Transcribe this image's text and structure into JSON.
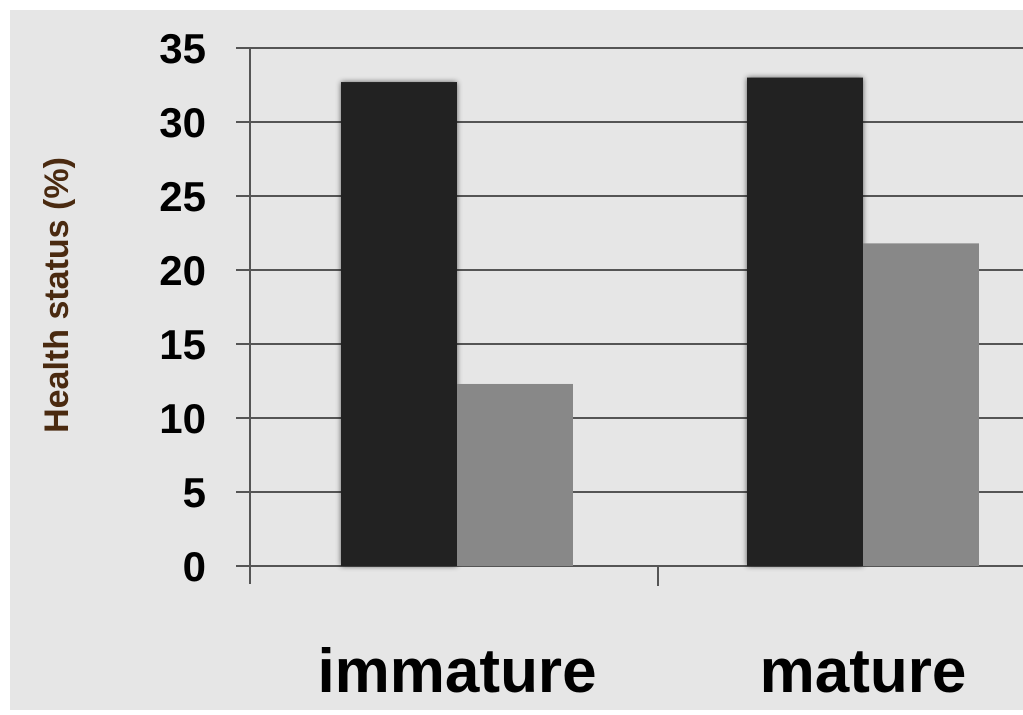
{
  "chart_data": {
    "type": "bar",
    "title": "",
    "xlabel": "",
    "ylabel": "Health status (%)",
    "categories": [
      "immature",
      "mature"
    ],
    "series": [
      {
        "values": [
          32.7,
          33.0
        ],
        "color": "#222222"
      },
      {
        "values": [
          12.3,
          21.8
        ],
        "color": "#888888"
      }
    ],
    "ylim": [
      0,
      35
    ],
    "yticks": [
      0,
      5,
      10,
      15,
      20,
      25,
      30,
      35
    ],
    "grid": true,
    "legend": "none",
    "colors": {
      "background": "#e6e6e6",
      "grid": "#555555",
      "ylabel": "#4a2a10"
    }
  }
}
